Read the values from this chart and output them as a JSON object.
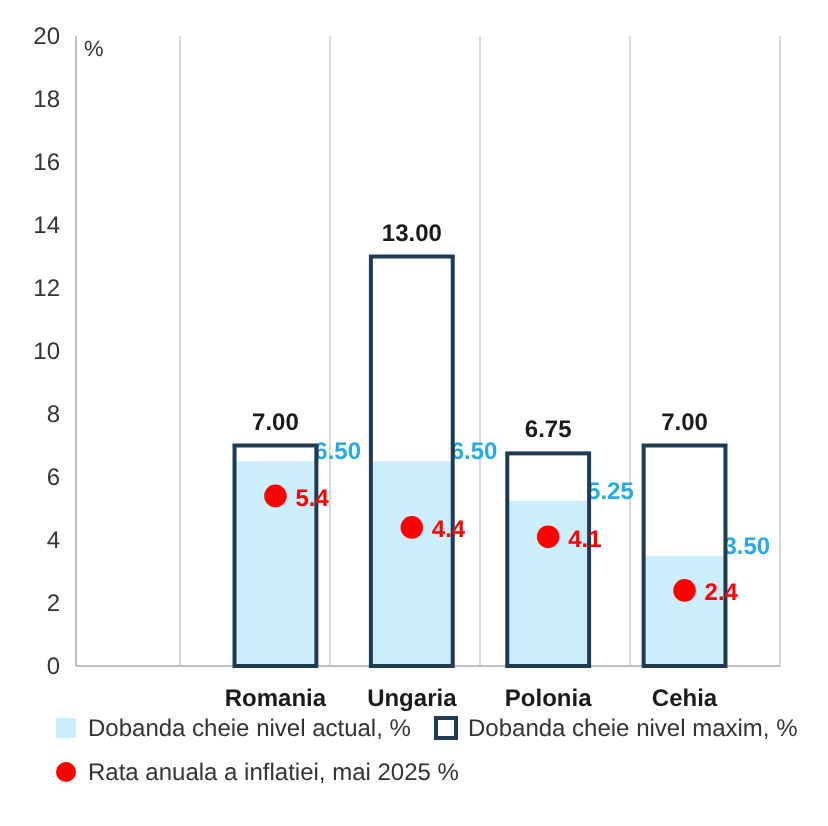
{
  "chart_data": {
    "type": "bar",
    "ylabel": "%",
    "categories": [
      "Romania",
      "Ungaria",
      "Polonia",
      "Cehia"
    ],
    "ylim": [
      0,
      20
    ],
    "yticks": [
      0,
      2,
      4,
      6,
      8,
      10,
      12,
      14,
      16,
      18,
      20
    ],
    "grid": "x",
    "legend": "bottom",
    "marker": "circle",
    "series": [
      {
        "name": "Dobanda cheie nivel actual, %",
        "type": "bar",
        "color": "#cdeefc",
        "values": [
          6.5,
          6.5,
          5.25,
          3.5
        ],
        "value_labels": [
          "6.50",
          "6.50",
          "5.25",
          "3.50"
        ]
      },
      {
        "name": "Dobanda cheie nivel maxim, %",
        "color": "#1f3a55",
        "values": [
          7.0,
          13.0,
          6.75,
          7.0
        ],
        "value_labels": [
          "7.00",
          "13.00",
          "6.75",
          "7.00"
        ]
      },
      {
        "name": "Rata anuala a inflatiei, mai 2025 %",
        "type": "scatter",
        "color": "#ff0000",
        "values": [
          5.4,
          4.4,
          4.1,
          2.4
        ],
        "value_labels": [
          "5.4",
          "4.4",
          "4.1",
          "2.4"
        ]
      }
    ]
  }
}
